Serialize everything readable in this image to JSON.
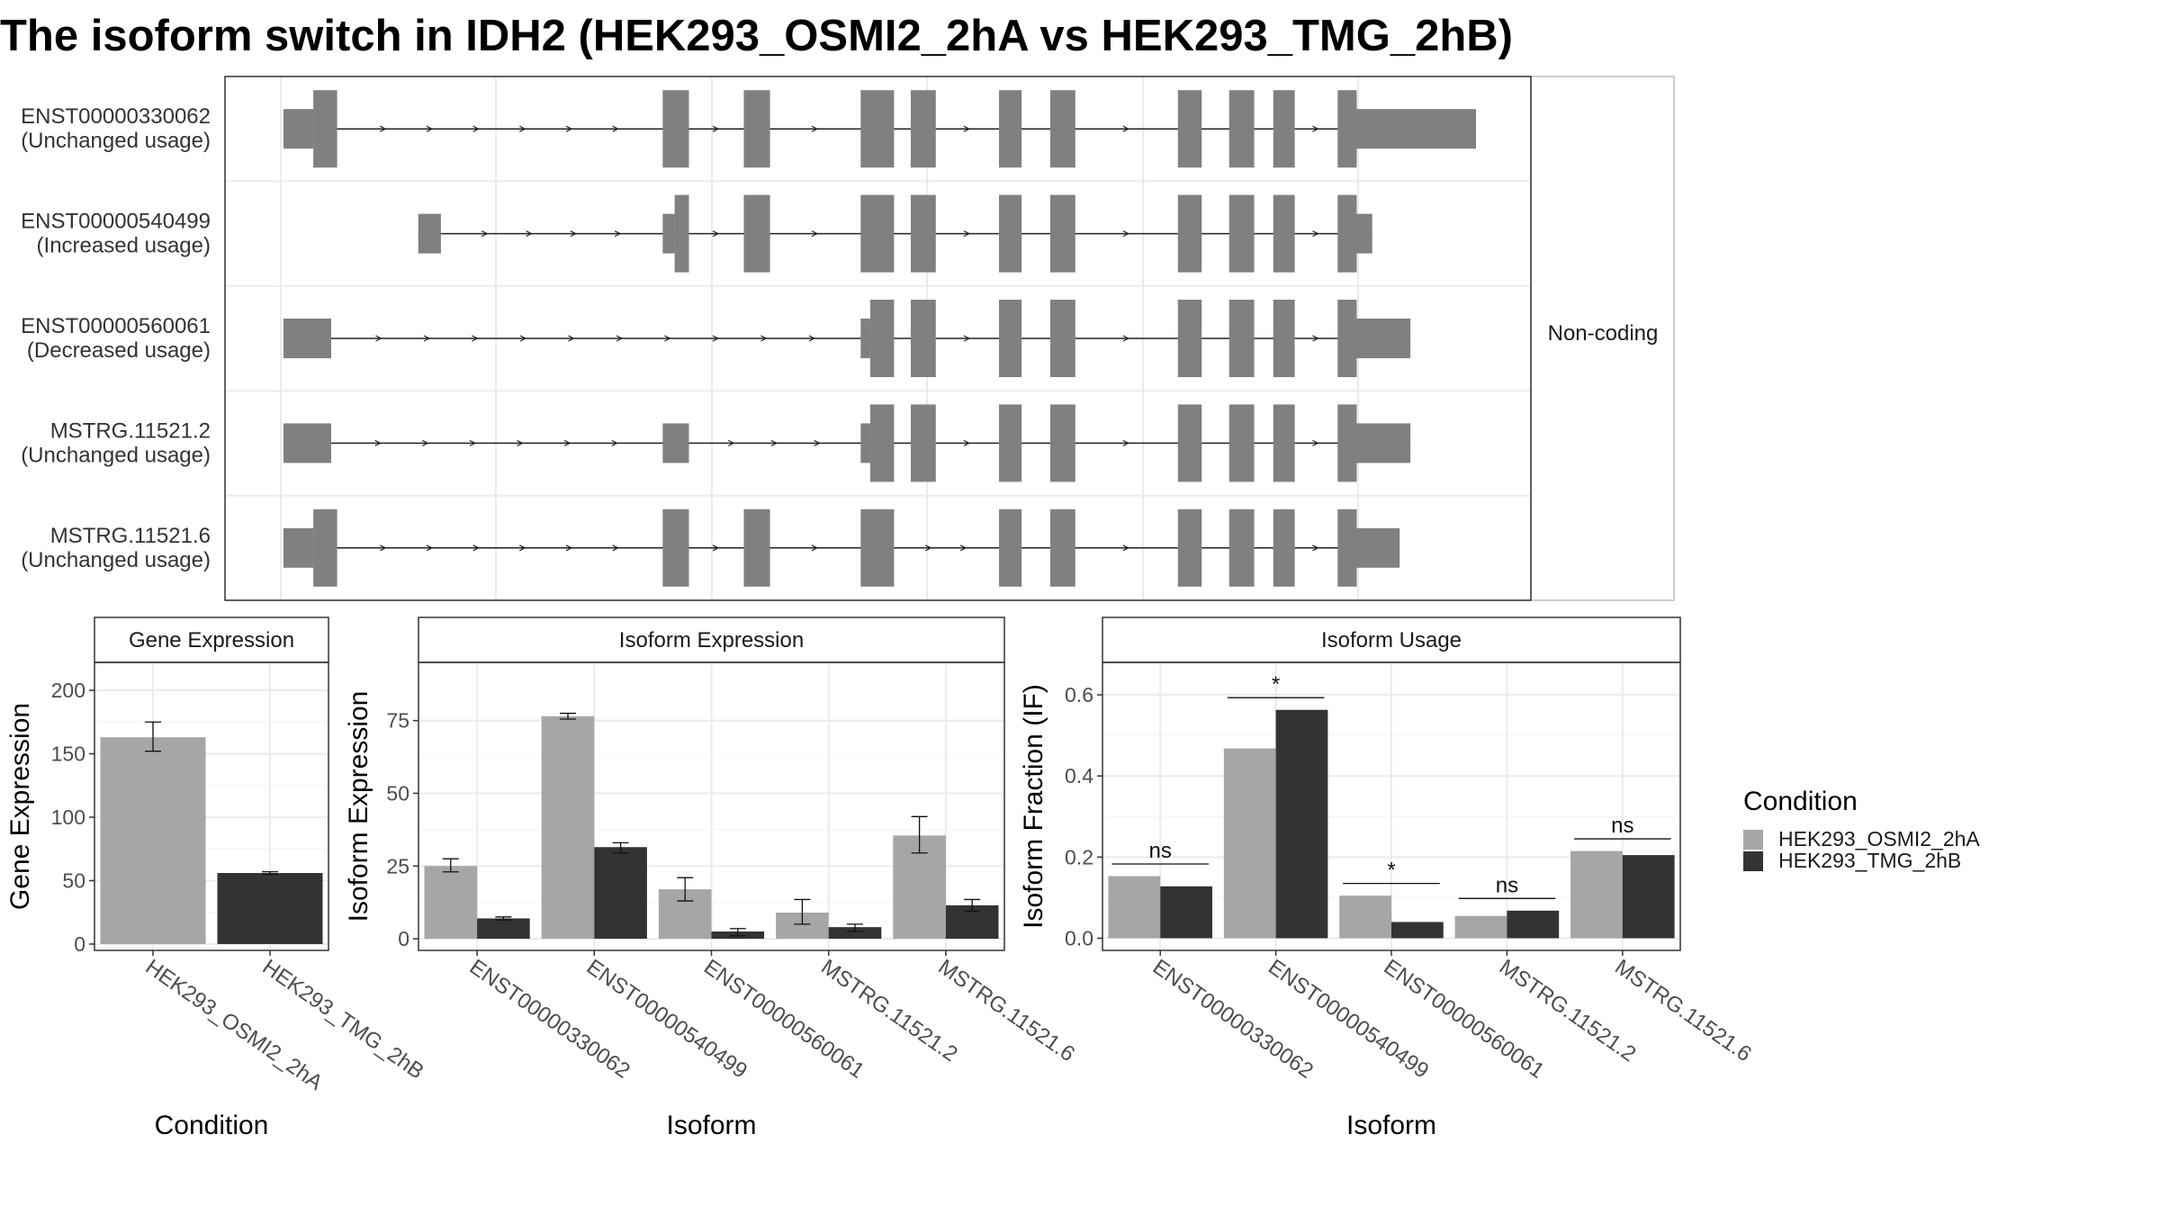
{
  "title": "The isoform switch in IDH2 (HEK293_OSMI2_2hA vs HEK293_TMG_2hB)",
  "colors": {
    "condition_a": "#a6a6a6",
    "condition_b": "#333333",
    "exon": "#808080",
    "grid": "#ebebeb",
    "panel_border": "#333333",
    "strip_fill": "#ffffff"
  },
  "chart_data": [
    {
      "type": "isoform-structure",
      "strip_label": "Non-coding",
      "x_range": [
        0,
        1
      ],
      "transcripts": [
        {
          "id": "ENST00000330062",
          "usage": "(Unchanged usage)",
          "exons": [
            [
              0.0,
              0.025,
              "thin"
            ],
            [
              0.025,
              0.045,
              "thick"
            ],
            [
              0.318,
              0.34,
              "thick"
            ],
            [
              0.386,
              0.408,
              "thick"
            ],
            [
              0.484,
              0.512,
              "thick"
            ],
            [
              0.526,
              0.547,
              "thick"
            ],
            [
              0.6,
              0.619,
              "thick"
            ],
            [
              0.643,
              0.664,
              "thick"
            ],
            [
              0.75,
              0.77,
              "thick"
            ],
            [
              0.793,
              0.814,
              "thick"
            ],
            [
              0.83,
              0.848,
              "thick"
            ],
            [
              0.884,
              0.9,
              "thick"
            ],
            [
              0.9,
              1.0,
              "thin"
            ]
          ]
        },
        {
          "id": "ENST00000540499",
          "usage": "(Increased usage)",
          "exons": [
            [
              0.113,
              0.132,
              "thin"
            ],
            [
              0.318,
              0.328,
              "thin"
            ],
            [
              0.328,
              0.34,
              "thick"
            ],
            [
              0.386,
              0.408,
              "thick"
            ],
            [
              0.484,
              0.512,
              "thick"
            ],
            [
              0.526,
              0.547,
              "thick"
            ],
            [
              0.6,
              0.619,
              "thick"
            ],
            [
              0.643,
              0.664,
              "thick"
            ],
            [
              0.75,
              0.77,
              "thick"
            ],
            [
              0.793,
              0.814,
              "thick"
            ],
            [
              0.83,
              0.848,
              "thick"
            ],
            [
              0.884,
              0.9,
              "thick"
            ],
            [
              0.9,
              0.913,
              "thin"
            ]
          ]
        },
        {
          "id": "ENST00000560061",
          "usage": "(Decreased usage)",
          "exons": [
            [
              0.0,
              0.04,
              "thin"
            ],
            [
              0.484,
              0.492,
              "thin"
            ],
            [
              0.492,
              0.512,
              "thick"
            ],
            [
              0.526,
              0.547,
              "thick"
            ],
            [
              0.6,
              0.619,
              "thick"
            ],
            [
              0.643,
              0.664,
              "thick"
            ],
            [
              0.75,
              0.77,
              "thick"
            ],
            [
              0.793,
              0.814,
              "thick"
            ],
            [
              0.83,
              0.848,
              "thick"
            ],
            [
              0.884,
              0.9,
              "thick"
            ],
            [
              0.9,
              0.945,
              "thin"
            ]
          ]
        },
        {
          "id": "MSTRG.11521.2",
          "usage": "(Unchanged usage)",
          "exons": [
            [
              0.0,
              0.04,
              "thin"
            ],
            [
              0.318,
              0.34,
              "thin"
            ],
            [
              0.484,
              0.492,
              "thin"
            ],
            [
              0.492,
              0.512,
              "thick"
            ],
            [
              0.526,
              0.547,
              "thick"
            ],
            [
              0.6,
              0.619,
              "thick"
            ],
            [
              0.643,
              0.664,
              "thick"
            ],
            [
              0.75,
              0.77,
              "thick"
            ],
            [
              0.793,
              0.814,
              "thick"
            ],
            [
              0.83,
              0.848,
              "thick"
            ],
            [
              0.884,
              0.9,
              "thick"
            ],
            [
              0.9,
              0.945,
              "thin"
            ]
          ]
        },
        {
          "id": "MSTRG.11521.6",
          "usage": "(Unchanged usage)",
          "exons": [
            [
              0.0,
              0.025,
              "thin"
            ],
            [
              0.025,
              0.045,
              "thick"
            ],
            [
              0.318,
              0.34,
              "thick"
            ],
            [
              0.386,
              0.408,
              "thick"
            ],
            [
              0.484,
              0.512,
              "thick"
            ],
            [
              0.6,
              0.619,
              "thick"
            ],
            [
              0.643,
              0.664,
              "thick"
            ],
            [
              0.75,
              0.77,
              "thick"
            ],
            [
              0.793,
              0.814,
              "thick"
            ],
            [
              0.83,
              0.848,
              "thick"
            ],
            [
              0.884,
              0.9,
              "thick"
            ],
            [
              0.9,
              0.936,
              "thin"
            ]
          ]
        }
      ]
    },
    {
      "type": "bar",
      "strip_title": "Gene Expression",
      "xlabel": "Condition",
      "ylabel": "Gene Expression",
      "ylim": [
        -5,
        222
      ],
      "yticks": [
        0,
        50,
        100,
        150,
        200
      ],
      "categories": [
        "HEK293_OSMI2_2hA",
        "HEK293_TMG_2hB"
      ],
      "values": [
        163,
        56
      ],
      "errors": [
        [
          152,
          175
        ],
        [
          55,
          57
        ]
      ]
    },
    {
      "type": "bar",
      "strip_title": "Isoform Expression",
      "xlabel": "Isoform",
      "ylabel": "Isoform Expression",
      "ylim": [
        -4,
        95
      ],
      "yticks": [
        0,
        25,
        50,
        75
      ],
      "categories": [
        "ENST00000330062",
        "ENST00000540499",
        "ENST00000560061",
        "MSTRG.11521.2",
        "MSTRG.11521.6"
      ],
      "series": [
        {
          "name": "HEK293_OSMI2_2hA",
          "values": [
            25,
            76.5,
            17,
            9,
            35.5
          ],
          "errors": [
            [
              23,
              27.5
            ],
            [
              75.5,
              77.5
            ],
            [
              13,
              21
            ],
            [
              5,
              13.5
            ],
            [
              29.5,
              42
            ]
          ]
        },
        {
          "name": "HEK293_TMG_2hB",
          "values": [
            7,
            31.5,
            2.5,
            4,
            11.5
          ],
          "errors": [
            [
              6.5,
              7.5
            ],
            [
              29.5,
              33
            ],
            [
              1,
              3.5
            ],
            [
              2.5,
              5
            ],
            [
              9.5,
              13.5
            ]
          ]
        }
      ]
    },
    {
      "type": "bar",
      "strip_title": "Isoform Usage",
      "xlabel": "Isoform",
      "ylabel": "Isoform Fraction (IF)",
      "ylim": [
        -0.03,
        0.68
      ],
      "yticks": [
        "0.0",
        "0.2",
        "0.4",
        "0.6"
      ],
      "categories": [
        "ENST00000330062",
        "ENST00000540499",
        "ENST00000560061",
        "MSTRG.11521.2",
        "MSTRG.11521.6"
      ],
      "series": [
        {
          "name": "HEK293_OSMI2_2hA",
          "values": [
            0.153,
            0.468,
            0.105,
            0.055,
            0.215
          ]
        },
        {
          "name": "HEK293_TMG_2hB",
          "values": [
            0.128,
            0.563,
            0.04,
            0.068,
            0.205
          ]
        }
      ],
      "significance": [
        {
          "label": "ns",
          "y": 0.183
        },
        {
          "label": "*",
          "y": 0.593
        },
        {
          "label": "*",
          "y": 0.135
        },
        {
          "label": "ns",
          "y": 0.098
        },
        {
          "label": "ns",
          "y": 0.245
        }
      ]
    }
  ],
  "legend": {
    "title": "Condition",
    "entries": [
      "HEK293_OSMI2_2hA",
      "HEK293_TMG_2hB"
    ]
  }
}
